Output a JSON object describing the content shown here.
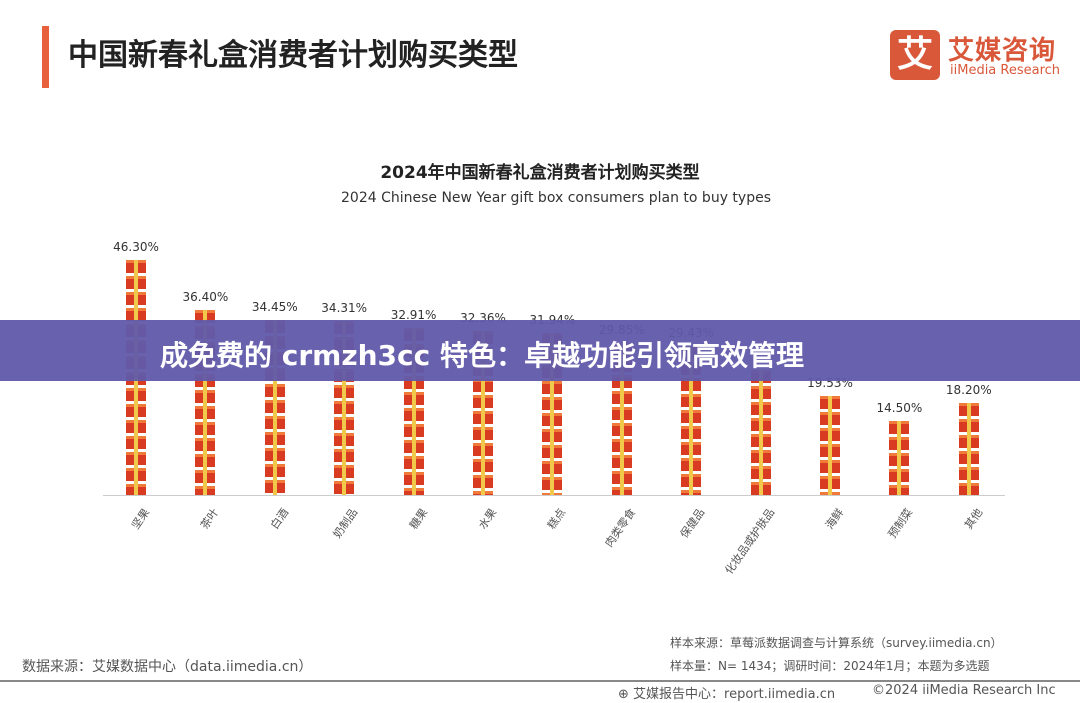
{
  "header": {
    "title": "中国新春礼盒消费者计划购买类型",
    "logo_cn": "艾媒咨询",
    "logo_en": "iiMedia Research",
    "logo_mark": "艾",
    "accent_color": "#e8603c"
  },
  "banner": {
    "text": "成免费的 crmzh3cc 特色：卓越功能引领高效管理",
    "color": "#605aaa"
  },
  "chart_data": {
    "type": "bar",
    "title": "2024年中国新春礼盒消费者计划购买类型",
    "subtitle": "2024 Chinese New Year gift box consumers plan to buy types",
    "categories": [
      "坚果",
      "茶叶",
      "白酒",
      "奶制品",
      "糖果",
      "水果",
      "糕点",
      "肉类零食",
      "保健品",
      "化妆品或护肤品",
      "海鲜",
      "预制菜",
      "其他"
    ],
    "values": [
      46.3,
      36.4,
      34.45,
      34.31,
      32.91,
      32.36,
      31.94,
      29.85,
      29.43,
      24.6,
      19.53,
      14.5,
      18.2
    ],
    "labels": [
      "46.30%",
      "36.40%",
      "34.45%",
      "34.31%",
      "32.91%",
      "32.36%",
      "31.94%",
      "29.85%",
      "29.43%",
      "",
      "19.53%",
      "14.50%",
      "18.20%"
    ],
    "ylim": [
      0,
      50
    ],
    "bar_style": "stacked gift icons",
    "bar_color": "#d93a22"
  },
  "footer": {
    "source_left": "数据来源：艾媒数据中心（data.iimedia.cn）",
    "sample_source": "样本来源：草莓派数据调查与计算系统（survey.iimedia.cn）",
    "sample_info": "样本量：N= 1434；调研时间：2024年1月；本题为多选题",
    "report_center": "艾媒报告中心：report.iimedia.cn",
    "copyright": "©2024 iiMedia Research Inc"
  }
}
